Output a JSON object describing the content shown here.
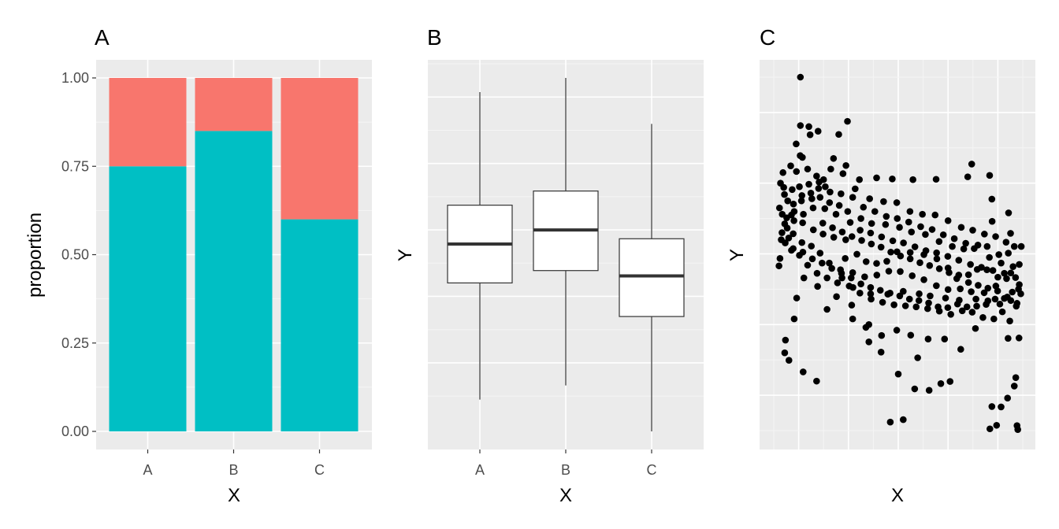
{
  "figure": {
    "background": "#ffffff"
  },
  "style": {
    "panel_bg": "#ebebeb",
    "grid_major": "#ffffff",
    "grid_minor": "#f5f5f5",
    "tick_color": "#333333",
    "fill_a": "#f8766d",
    "fill_b": "#00bfc4",
    "box_fill": "#ffffff",
    "box_line": "#333333",
    "point_color": "#000000"
  },
  "chart_data": [
    {
      "panel": "A",
      "type": "bar",
      "stacked": true,
      "xlabel": "X",
      "ylabel": "proportion",
      "categories": [
        "A",
        "B",
        "C"
      ],
      "ylim": [
        0,
        1
      ],
      "yticks": [
        0,
        0.25,
        0.5,
        0.75,
        1
      ],
      "ytick_labels": [
        "0.00",
        "0.25",
        "0.50",
        "0.75",
        "1.00"
      ],
      "series": [
        {
          "color": "#00bfc4",
          "values": [
            0.75,
            0.85,
            0.6
          ]
        },
        {
          "color": "#f8766d",
          "values": [
            0.25,
            0.15,
            0.4
          ]
        }
      ],
      "grid": true
    },
    {
      "panel": "B",
      "type": "boxplot",
      "xlabel": "X",
      "ylabel": "Y",
      "categories": [
        "A",
        "B",
        "C"
      ],
      "y_tick_labels_shown": false,
      "ylim": [
        0,
        1
      ],
      "boxes": [
        {
          "whisker_low": 0.09,
          "q1": 0.42,
          "median": 0.53,
          "q3": 0.64,
          "whisker_high": 0.96
        },
        {
          "whisker_low": 0.13,
          "q1": 0.455,
          "median": 0.57,
          "q3": 0.68,
          "whisker_high": 1.0
        },
        {
          "whisker_low": 0.0,
          "q1": 0.325,
          "median": 0.44,
          "q3": 0.545,
          "whisker_high": 0.87
        }
      ],
      "grid": true
    },
    {
      "panel": "C",
      "type": "scatter",
      "xlabel": "X",
      "ylabel": "Y",
      "tick_labels_shown": false,
      "xlim": [
        0,
        1
      ],
      "ylim": [
        0,
        1
      ],
      "points": [
        [
          0.107,
          1.0
        ],
        [
          0.107,
          0.863
        ],
        [
          0.141,
          0.86
        ],
        [
          0.09,
          0.811
        ],
        [
          0.178,
          0.847
        ],
        [
          0.146,
          0.837
        ],
        [
          0.106,
          0.778
        ],
        [
          0.115,
          0.773
        ],
        [
          0.2,
          0.71
        ],
        [
          0.182,
          0.703
        ],
        [
          0.207,
          0.69
        ],
        [
          0.261,
          0.838
        ],
        [
          0.296,
          0.875
        ],
        [
          0.344,
          0.71
        ],
        [
          0.413,
          0.715
        ],
        [
          0.476,
          0.712
        ],
        [
          0.559,
          0.71
        ],
        [
          0.652,
          0.711
        ],
        [
          0.779,
          0.718
        ],
        [
          0.795,
          0.754
        ],
        [
          0.867,
          0.722
        ],
        [
          0.876,
          0.655
        ],
        [
          0.877,
          0.592
        ],
        [
          0.943,
          0.616
        ],
        [
          0.951,
          0.558
        ],
        [
          0.994,
          0.521
        ],
        [
          0.986,
          0.47
        ],
        [
          0.983,
          0.4
        ],
        [
          0.974,
          0.352
        ],
        [
          0.948,
          0.31
        ],
        [
          0.941,
          0.261
        ],
        [
          0.985,
          0.262
        ],
        [
          0.972,
          0.15
        ],
        [
          0.966,
          0.126
        ],
        [
          0.98,
          0.003
        ],
        [
          0.977,
          0.014
        ],
        [
          0.939,
          0.092
        ],
        [
          0.913,
          0.067
        ],
        [
          0.876,
          0.068
        ],
        [
          0.895,
          0.015
        ],
        [
          0.868,
          0.005
        ],
        [
          0.708,
          0.139
        ],
        [
          0.671,
          0.133
        ],
        [
          0.624,
          0.114
        ],
        [
          0.566,
          0.118
        ],
        [
          0.52,
          0.031
        ],
        [
          0.468,
          0.024
        ],
        [
          0.578,
          0.206
        ],
        [
          0.5,
          0.16
        ],
        [
          0.431,
          0.222
        ],
        [
          0.382,
          0.251
        ],
        [
          0.37,
          0.292
        ],
        [
          0.317,
          0.316
        ],
        [
          0.313,
          0.355
        ],
        [
          0.389,
          0.387
        ],
        [
          0.458,
          0.386
        ],
        [
          0.52,
          0.394
        ],
        [
          0.584,
          0.387
        ],
        [
          0.628,
          0.381
        ],
        [
          0.69,
          0.375
        ],
        [
          0.745,
          0.369
        ],
        [
          0.812,
          0.372
        ],
        [
          0.86,
          0.367
        ],
        [
          0.908,
          0.358
        ],
        [
          0.81,
          0.289
        ],
        [
          0.751,
          0.23
        ],
        [
          0.686,
          0.259
        ],
        [
          0.62,
          0.259
        ],
        [
          0.55,
          0.27
        ],
        [
          0.494,
          0.284
        ],
        [
          0.433,
          0.269
        ],
        [
          0.382,
          0.3
        ],
        [
          0.318,
          0.405
        ],
        [
          0.287,
          0.487
        ],
        [
          0.274,
          0.432
        ],
        [
          0.252,
          0.379
        ],
        [
          0.214,
          0.343
        ],
        [
          0.176,
          0.408
        ],
        [
          0.121,
          0.432
        ],
        [
          0.092,
          0.375
        ],
        [
          0.082,
          0.316
        ],
        [
          0.047,
          0.256
        ],
        [
          0.044,
          0.22
        ],
        [
          0.061,
          0.199
        ],
        [
          0.118,
          0.166
        ],
        [
          0.172,
          0.14
        ],
        [
          0.021,
          0.466
        ],
        [
          0.025,
          0.487
        ],
        [
          0.03,
          0.54
        ],
        [
          0.044,
          0.585
        ],
        [
          0.071,
          0.61
        ],
        [
          0.111,
          0.65
        ],
        [
          0.153,
          0.656
        ],
        [
          0.205,
          0.628
        ],
        [
          0.25,
          0.612
        ],
        [
          0.297,
          0.62
        ],
        [
          0.35,
          0.6
        ],
        [
          0.393,
          0.586
        ],
        [
          0.449,
          0.583
        ],
        [
          0.505,
          0.575
        ],
        [
          0.553,
          0.562
        ],
        [
          0.609,
          0.555
        ],
        [
          0.664,
          0.535
        ],
        [
          0.717,
          0.521
        ],
        [
          0.763,
          0.514
        ],
        [
          0.805,
          0.515
        ],
        [
          0.857,
          0.521
        ],
        [
          0.904,
          0.498
        ],
        [
          0.942,
          0.502
        ],
        [
          0.961,
          0.464
        ],
        [
          0.9,
          0.434
        ],
        [
          0.856,
          0.455
        ],
        [
          0.817,
          0.456
        ],
        [
          0.782,
          0.441
        ],
        [
          0.735,
          0.43
        ],
        [
          0.7,
          0.46
        ],
        [
          0.655,
          0.486
        ],
        [
          0.603,
          0.498
        ],
        [
          0.548,
          0.504
        ],
        [
          0.495,
          0.506
        ],
        [
          0.454,
          0.479
        ],
        [
          0.413,
          0.473
        ],
        [
          0.371,
          0.478
        ],
        [
          0.334,
          0.499
        ],
        [
          0.289,
          0.54
        ],
        [
          0.241,
          0.547
        ],
        [
          0.198,
          0.556
        ],
        [
          0.159,
          0.568
        ],
        [
          0.116,
          0.588
        ],
        [
          0.082,
          0.62
        ],
        [
          0.056,
          0.65
        ],
        [
          0.04,
          0.688
        ],
        [
          0.027,
          0.7
        ],
        [
          0.037,
          0.73
        ],
        [
          0.068,
          0.749
        ],
        [
          0.091,
          0.733
        ],
        [
          0.136,
          0.74
        ],
        [
          0.172,
          0.72
        ],
        [
          0.229,
          0.74
        ],
        [
          0.278,
          0.727
        ],
        [
          0.327,
          0.684
        ],
        [
          0.385,
          0.656
        ],
        [
          0.441,
          0.648
        ],
        [
          0.494,
          0.645
        ],
        [
          0.547,
          0.62
        ],
        [
          0.597,
          0.612
        ],
        [
          0.648,
          0.61
        ],
        [
          0.7,
          0.594
        ],
        [
          0.753,
          0.575
        ],
        [
          0.799,
          0.567
        ],
        [
          0.846,
          0.556
        ],
        [
          0.891,
          0.549
        ],
        [
          0.933,
          0.533
        ],
        [
          0.966,
          0.521
        ],
        [
          0.935,
          0.43
        ],
        [
          0.892,
          0.409
        ],
        [
          0.845,
          0.39
        ],
        [
          0.793,
          0.393
        ],
        [
          0.749,
          0.401
        ],
        [
          0.7,
          0.399
        ],
        [
          0.653,
          0.41
        ],
        [
          0.603,
          0.427
        ],
        [
          0.556,
          0.438
        ],
        [
          0.508,
          0.45
        ],
        [
          0.462,
          0.451
        ],
        [
          0.414,
          0.44
        ],
        [
          0.365,
          0.435
        ],
        [
          0.317,
          0.447
        ],
        [
          0.268,
          0.455
        ],
        [
          0.223,
          0.474
        ],
        [
          0.186,
          0.502
        ],
        [
          0.151,
          0.522
        ],
        [
          0.113,
          0.532
        ],
        [
          0.078,
          0.557
        ],
        [
          0.054,
          0.573
        ],
        [
          0.034,
          0.612
        ],
        [
          0.023,
          0.63
        ],
        [
          0.043,
          0.668
        ],
        [
          0.074,
          0.682
        ],
        [
          0.103,
          0.69
        ],
        [
          0.141,
          0.697
        ],
        [
          0.18,
          0.685
        ],
        [
          0.226,
          0.675
        ],
        [
          0.27,
          0.67
        ],
        [
          0.317,
          0.66
        ],
        [
          0.36,
          0.632
        ],
        [
          0.406,
          0.62
        ],
        [
          0.452,
          0.606
        ],
        [
          0.496,
          0.6
        ],
        [
          0.542,
          0.59
        ],
        [
          0.59,
          0.577
        ],
        [
          0.636,
          0.569
        ],
        [
          0.681,
          0.554
        ],
        [
          0.725,
          0.543
        ],
        [
          0.771,
          0.53
        ],
        [
          0.82,
          0.525
        ],
        [
          0.866,
          0.49
        ],
        [
          0.913,
          0.474
        ],
        [
          0.952,
          0.446
        ],
        [
          0.986,
          0.413
        ],
        [
          0.952,
          0.368
        ],
        [
          0.918,
          0.336
        ],
        [
          0.884,
          0.316
        ],
        [
          0.84,
          0.32
        ],
        [
          0.797,
          0.335
        ],
        [
          0.757,
          0.339
        ],
        [
          0.711,
          0.329
        ],
        [
          0.665,
          0.338
        ],
        [
          0.618,
          0.345
        ],
        [
          0.572,
          0.35
        ],
        [
          0.529,
          0.353
        ],
        [
          0.483,
          0.356
        ],
        [
          0.437,
          0.363
        ],
        [
          0.391,
          0.372
        ],
        [
          0.346,
          0.389
        ],
        [
          0.303,
          0.409
        ],
        [
          0.256,
          0.418
        ],
        [
          0.214,
          0.432
        ],
        [
          0.174,
          0.445
        ],
        [
          0.136,
          0.468
        ],
        [
          0.103,
          0.496
        ],
        [
          0.071,
          0.51
        ],
        [
          0.046,
          0.531
        ],
        [
          0.033,
          0.56
        ],
        [
          0.052,
          0.602
        ],
        [
          0.079,
          0.641
        ],
        [
          0.113,
          0.665
        ],
        [
          0.149,
          0.672
        ],
        [
          0.186,
          0.66
        ],
        [
          0.224,
          0.645
        ],
        [
          0.263,
          0.637
        ],
        [
          0.307,
          0.589
        ],
        [
          0.347,
          0.567
        ],
        [
          0.389,
          0.559
        ],
        [
          0.433,
          0.548
        ],
        [
          0.478,
          0.537
        ],
        [
          0.521,
          0.531
        ],
        [
          0.567,
          0.52
        ],
        [
          0.611,
          0.509
        ],
        [
          0.654,
          0.503
        ],
        [
          0.699,
          0.493
        ],
        [
          0.743,
          0.482
        ],
        [
          0.79,
          0.47
        ],
        [
          0.834,
          0.462
        ],
        [
          0.88,
          0.453
        ],
        [
          0.926,
          0.445
        ],
        [
          0.971,
          0.433
        ],
        [
          0.992,
          0.387
        ],
        [
          0.958,
          0.392
        ],
        [
          0.926,
          0.374
        ],
        [
          0.889,
          0.372
        ],
        [
          0.853,
          0.357
        ],
        [
          0.815,
          0.352
        ],
        [
          0.776,
          0.35
        ],
        [
          0.738,
          0.358
        ],
        [
          0.699,
          0.348
        ],
        [
          0.66,
          0.35
        ],
        [
          0.622,
          0.361
        ],
        [
          0.583,
          0.368
        ],
        [
          0.545,
          0.372
        ],
        [
          0.506,
          0.381
        ],
        [
          0.467,
          0.389
        ],
        [
          0.428,
          0.397
        ],
        [
          0.389,
          0.405
        ],
        [
          0.35,
          0.415
        ],
        [
          0.311,
          0.432
        ],
        [
          0.272,
          0.445
        ],
        [
          0.233,
          0.459
        ],
        [
          0.194,
          0.474
        ],
        [
          0.155,
          0.486
        ],
        [
          0.117,
          0.505
        ],
        [
          0.078,
          0.515
        ],
        [
          0.06,
          0.545
        ],
        [
          0.081,
          0.594
        ],
        [
          0.119,
          0.612
        ],
        [
          0.158,
          0.63
        ],
        [
          0.197,
          0.587
        ],
        [
          0.236,
          0.574
        ],
        [
          0.275,
          0.562
        ],
        [
          0.314,
          0.549
        ],
        [
          0.353,
          0.538
        ],
        [
          0.392,
          0.528
        ],
        [
          0.431,
          0.519
        ],
        [
          0.47,
          0.505
        ],
        [
          0.509,
          0.494
        ],
        [
          0.548,
          0.486
        ],
        [
          0.587,
          0.475
        ],
        [
          0.626,
          0.467
        ],
        [
          0.665,
          0.458
        ],
        [
          0.704,
          0.447
        ],
        [
          0.743,
          0.44
        ],
        [
          0.782,
          0.419
        ],
        [
          0.821,
          0.411
        ],
        [
          0.86,
          0.403
        ],
        [
          0.899,
          0.395
        ],
        [
          0.938,
          0.378
        ],
        [
          0.977,
          0.36
        ],
        [
          0.29,
          0.75
        ],
        [
          0.24,
          0.77
        ]
      ],
      "grid": true
    }
  ]
}
